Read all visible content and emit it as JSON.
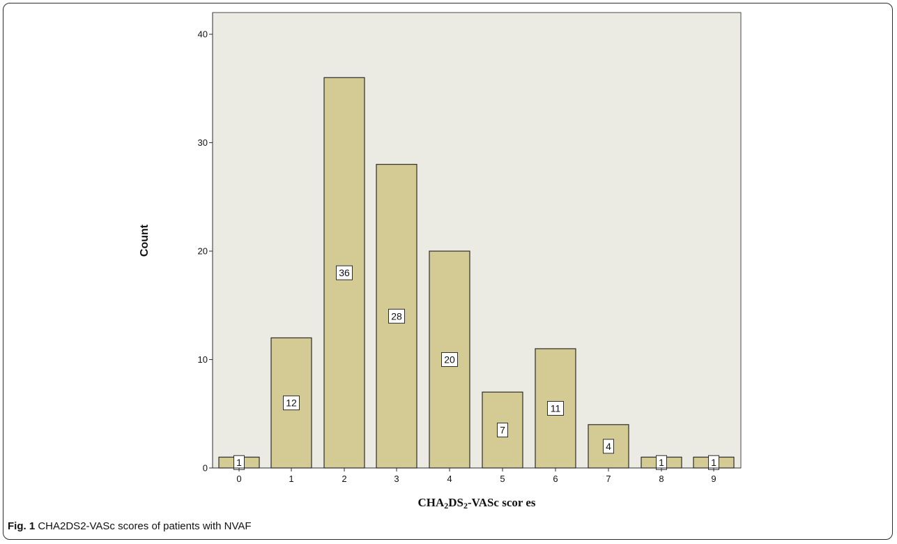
{
  "chart_data": {
    "type": "bar",
    "categories": [
      "0",
      "1",
      "2",
      "3",
      "4",
      "5",
      "6",
      "7",
      "8",
      "9"
    ],
    "values": [
      1,
      12,
      36,
      28,
      20,
      7,
      11,
      4,
      1,
      1
    ],
    "data_labels": [
      "1",
      "12",
      "36",
      "28",
      "20",
      "7",
      "11",
      "4",
      "1",
      "1"
    ],
    "xlabel": {
      "part1": "CHA",
      "sub1": "2",
      "part2": "DS",
      "sub2": "2",
      "part3": "-VASc scor es"
    },
    "ylabel": "Count",
    "ylim": [
      0,
      42
    ],
    "yticks": [
      0,
      10,
      20,
      30,
      40
    ],
    "ytick_labels": [
      "0",
      "10",
      "20",
      "30",
      "40"
    ],
    "grid": false,
    "colors": {
      "plot_background": "#ebebe3",
      "bar_fill": "#d4ca94",
      "bar_stroke": "#2b2b2b",
      "label_box": "#ffffff"
    }
  },
  "caption": {
    "label": "Fig. 1",
    "text": " CHA2DS2-VASc scores of patients with NVAF"
  }
}
